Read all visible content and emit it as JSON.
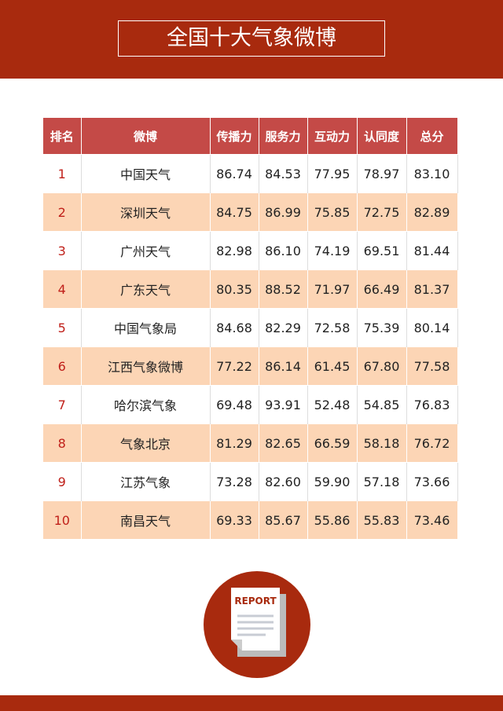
{
  "header": {
    "title": "全国十大气象微博"
  },
  "table": {
    "columns": [
      "排名",
      "微博",
      "传播力",
      "服务力",
      "互动力",
      "认同度",
      "总分"
    ],
    "rows": [
      [
        "1",
        "中国天气",
        "86.74",
        "84.53",
        "77.95",
        "78.97",
        "83.10"
      ],
      [
        "2",
        "深圳天气",
        "84.75",
        "86.99",
        "75.85",
        "72.75",
        "82.89"
      ],
      [
        "3",
        "广州天气",
        "82.98",
        "86.10",
        "74.19",
        "69.51",
        "81.44"
      ],
      [
        "4",
        "广东天气",
        "80.35",
        "88.52",
        "71.97",
        "66.49",
        "81.37"
      ],
      [
        "5",
        "中国气象局",
        "84.68",
        "82.29",
        "72.58",
        "75.39",
        "80.14"
      ],
      [
        "6",
        "江西气象微博",
        "77.22",
        "86.14",
        "61.45",
        "67.80",
        "77.58"
      ],
      [
        "7",
        "哈尔滨气象",
        "69.48",
        "93.91",
        "52.48",
        "54.85",
        "76.83"
      ],
      [
        "8",
        "气象北京",
        "81.29",
        "82.65",
        "66.59",
        "58.18",
        "76.72"
      ],
      [
        "9",
        "江苏气象",
        "73.28",
        "82.60",
        "59.90",
        "57.18",
        "73.66"
      ],
      [
        "10",
        "南昌天气",
        "69.33",
        "85.67",
        "55.86",
        "55.83",
        "73.46"
      ]
    ]
  },
  "icon": {
    "label": "REPORT"
  }
}
